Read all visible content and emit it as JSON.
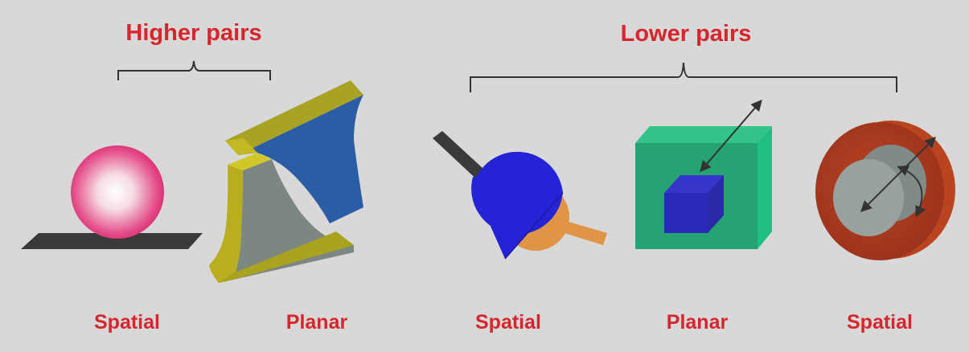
{
  "groups": {
    "higher": {
      "title": "Higher pairs",
      "items": [
        {
          "label": "Spatial"
        },
        {
          "label": "Planar"
        }
      ]
    },
    "lower": {
      "title": "Lower pairs",
      "items": [
        {
          "label": "Spatial"
        },
        {
          "label": "Planar"
        },
        {
          "label": "Spatial"
        }
      ]
    }
  },
  "colors": {
    "background": "#d8d8d8",
    "label": "#d6262d",
    "sphere": "#e0306a",
    "gear_yellow": "#b8b01e",
    "gear_blue": "#2a5ea8",
    "gear_gray": "#7f8a85",
    "joint_blue": "#2424d6",
    "joint_orange": "#e09446",
    "box_green": "#26a372",
    "cylinder_red": "#a6381a"
  }
}
